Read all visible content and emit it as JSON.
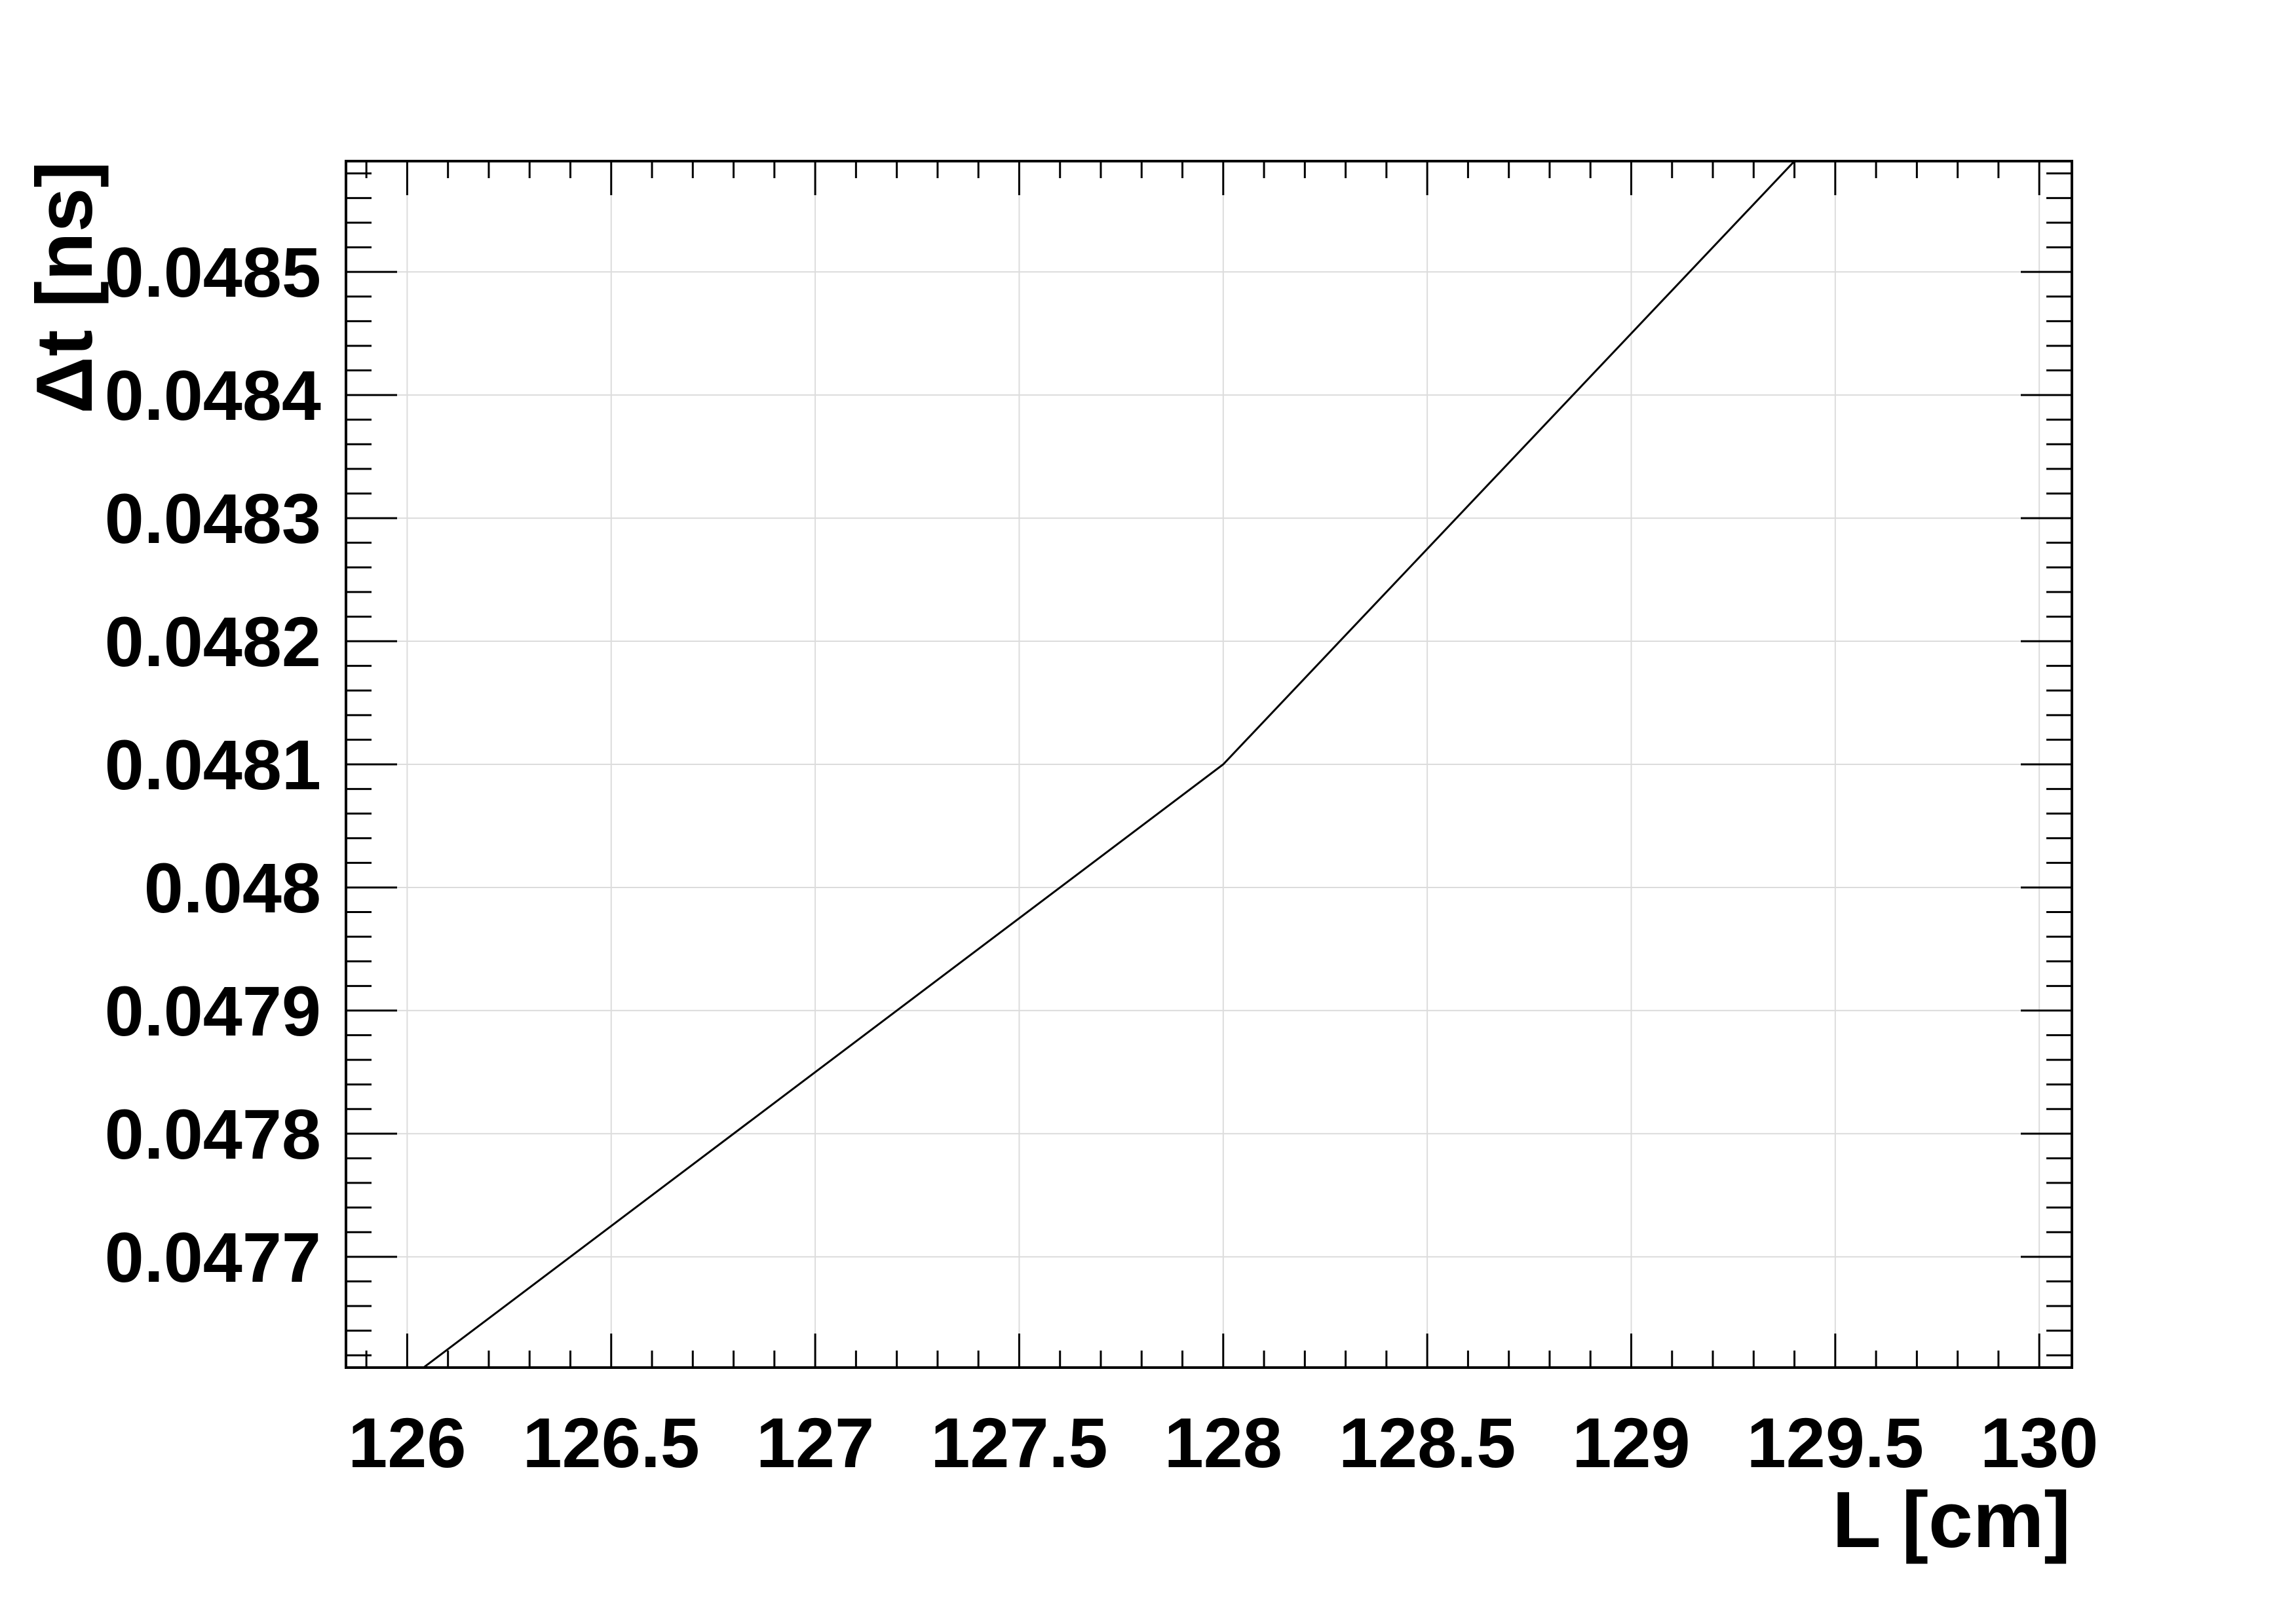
{
  "chart_data": {
    "type": "line",
    "title": "",
    "xlabel": "L [cm]",
    "ylabel": "Δt [ns]",
    "xlim": [
      125.85,
      130.08
    ],
    "ylim": [
      0.04761,
      0.04859
    ],
    "grid": true,
    "colors": {
      "line": "#000000",
      "grid": "#dcdcdc",
      "frame": "#000000"
    },
    "x_ticks": [
      {
        "value": 126,
        "label": "126"
      },
      {
        "value": 126.5,
        "label": "126.5"
      },
      {
        "value": 127,
        "label": "127"
      },
      {
        "value": 127.5,
        "label": "127.5"
      },
      {
        "value": 128,
        "label": "128"
      },
      {
        "value": 128.5,
        "label": "128.5"
      },
      {
        "value": 129,
        "label": "129"
      },
      {
        "value": 129.5,
        "label": "129.5"
      },
      {
        "value": 130,
        "label": "130"
      }
    ],
    "y_ticks": [
      {
        "value": 0.0477,
        "label": "0.0477"
      },
      {
        "value": 0.0478,
        "label": "0.0478"
      },
      {
        "value": 0.0479,
        "label": "0.0479"
      },
      {
        "value": 0.048,
        "label": "0.048"
      },
      {
        "value": 0.0481,
        "label": "0.0481"
      },
      {
        "value": 0.0482,
        "label": "0.0482"
      },
      {
        "value": 0.0483,
        "label": "0.0483"
      },
      {
        "value": 0.0484,
        "label": "0.0484"
      },
      {
        "value": 0.0485,
        "label": "0.0485"
      }
    ],
    "series": [
      {
        "x": [
          126,
          128,
          130
        ],
        "y": [
          0.0476,
          0.0481,
          0.0488
        ]
      }
    ]
  }
}
